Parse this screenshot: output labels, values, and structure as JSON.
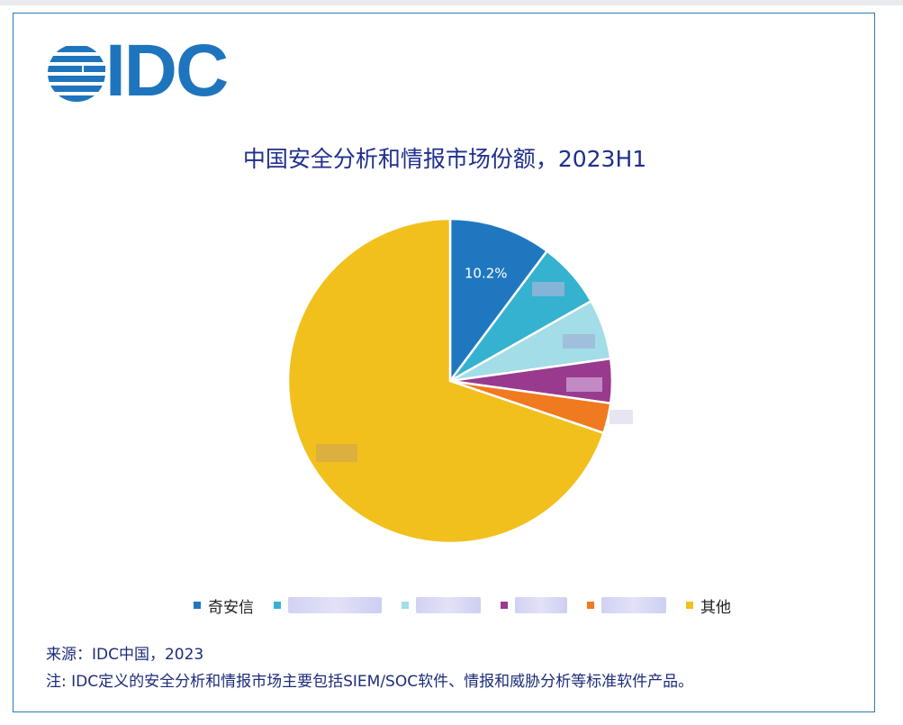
{
  "logo": {
    "text": "IDC"
  },
  "chart_data": {
    "type": "pie",
    "title": "中国安全分析和情报市场份额，2023H1",
    "slices": [
      {
        "name": "奇安信",
        "value": 10.2,
        "label": "10.2%",
        "color": "#1f78bf"
      },
      {
        "name": "",
        "value": 6.6,
        "label": "",
        "color": "#34b2cf"
      },
      {
        "name": "",
        "value": 6.0,
        "label": "",
        "color": "#a3dde7"
      },
      {
        "name": "",
        "value": 4.4,
        "label": "",
        "color": "#993a8f"
      },
      {
        "name": "",
        "value": 3.0,
        "label": "",
        "color": "#f07a1f"
      },
      {
        "name": "其他",
        "value": 69.8,
        "label": "",
        "color": "#f2c01d"
      }
    ],
    "legend_position": "bottom"
  },
  "footer": {
    "source": "来源：IDC中国，2023",
    "note": "注: IDC定义的安全分析和情报市场主要包括SIEM/SOC软件、情报和威胁分析等标准软件产品。"
  }
}
